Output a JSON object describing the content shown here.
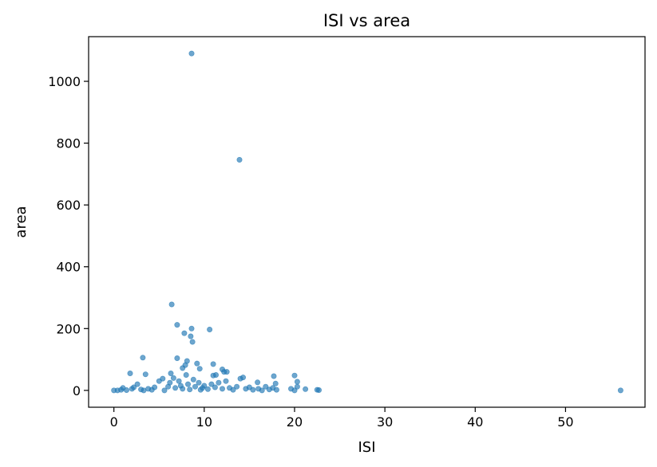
{
  "chart_data": {
    "type": "scatter",
    "title": "ISI vs area",
    "xlabel": "ISI",
    "ylabel": "area",
    "xlim": [
      -2.8,
      58.8
    ],
    "ylim": [
      -54.5,
      1144.5
    ],
    "xticks": [
      0,
      10,
      20,
      30,
      40,
      50
    ],
    "yticks": [
      0,
      200,
      400,
      600,
      800,
      1000
    ],
    "grid": false,
    "point_color": "#1f77b4",
    "series": [
      {
        "points": [
          [
            8.6,
            1090
          ],
          [
            13.9,
            746
          ],
          [
            6.4,
            278
          ],
          [
            7.0,
            212
          ],
          [
            7.8,
            185
          ],
          [
            8.6,
            200
          ],
          [
            10.6,
            197
          ],
          [
            8.5,
            175
          ],
          [
            8.7,
            157
          ],
          [
            3.2,
            106
          ],
          [
            7.0,
            104
          ],
          [
            8.1,
            95
          ],
          [
            9.2,
            87
          ],
          [
            11.0,
            85
          ],
          [
            7.9,
            82
          ],
          [
            9.5,
            70
          ],
          [
            7.6,
            72
          ],
          [
            12.0,
            68
          ],
          [
            12.2,
            60
          ],
          [
            12.5,
            60
          ],
          [
            1.8,
            55
          ],
          [
            3.5,
            52
          ],
          [
            6.3,
            55
          ],
          [
            8.0,
            50
          ],
          [
            11.3,
            50
          ],
          [
            11.0,
            48
          ],
          [
            14.3,
            42
          ],
          [
            14.0,
            38
          ],
          [
            17.7,
            46
          ],
          [
            20.0,
            48
          ],
          [
            20.3,
            28
          ],
          [
            15.9,
            26
          ],
          [
            17.9,
            22
          ],
          [
            20.3,
            12
          ],
          [
            21.2,
            4
          ],
          [
            22.5,
            2
          ],
          [
            22.7,
            1
          ],
          [
            56.1,
            0
          ],
          [
            0,
            0
          ],
          [
            0.4,
            0
          ],
          [
            0.8,
            2
          ],
          [
            1.0,
            8
          ],
          [
            1.4,
            1
          ],
          [
            2.0,
            5
          ],
          [
            2.2,
            10
          ],
          [
            2.6,
            20
          ],
          [
            3.0,
            3
          ],
          [
            3.3,
            0
          ],
          [
            3.8,
            5
          ],
          [
            4.2,
            2
          ],
          [
            4.5,
            10
          ],
          [
            5.0,
            30
          ],
          [
            5.4,
            38
          ],
          [
            5.6,
            0
          ],
          [
            6.0,
            12
          ],
          [
            6.2,
            25
          ],
          [
            6.6,
            40
          ],
          [
            6.8,
            8
          ],
          [
            7.2,
            30
          ],
          [
            7.4,
            15
          ],
          [
            7.6,
            5
          ],
          [
            8.2,
            20
          ],
          [
            8.4,
            3
          ],
          [
            8.8,
            35
          ],
          [
            9.0,
            12
          ],
          [
            9.4,
            25
          ],
          [
            9.6,
            2
          ],
          [
            9.8,
            8
          ],
          [
            10.0,
            15
          ],
          [
            10.4,
            4
          ],
          [
            10.8,
            20
          ],
          [
            11.2,
            10
          ],
          [
            11.6,
            25
          ],
          [
            12.0,
            5
          ],
          [
            12.4,
            30
          ],
          [
            12.8,
            8
          ],
          [
            13.2,
            2
          ],
          [
            13.6,
            12
          ],
          [
            14.6,
            5
          ],
          [
            15.0,
            10
          ],
          [
            15.4,
            2
          ],
          [
            16.0,
            5
          ],
          [
            16.4,
            0
          ],
          [
            16.8,
            12
          ],
          [
            17.2,
            3
          ],
          [
            17.6,
            8
          ],
          [
            18.0,
            2
          ],
          [
            19.6,
            5
          ],
          [
            20.0,
            0
          ]
        ]
      }
    ]
  }
}
